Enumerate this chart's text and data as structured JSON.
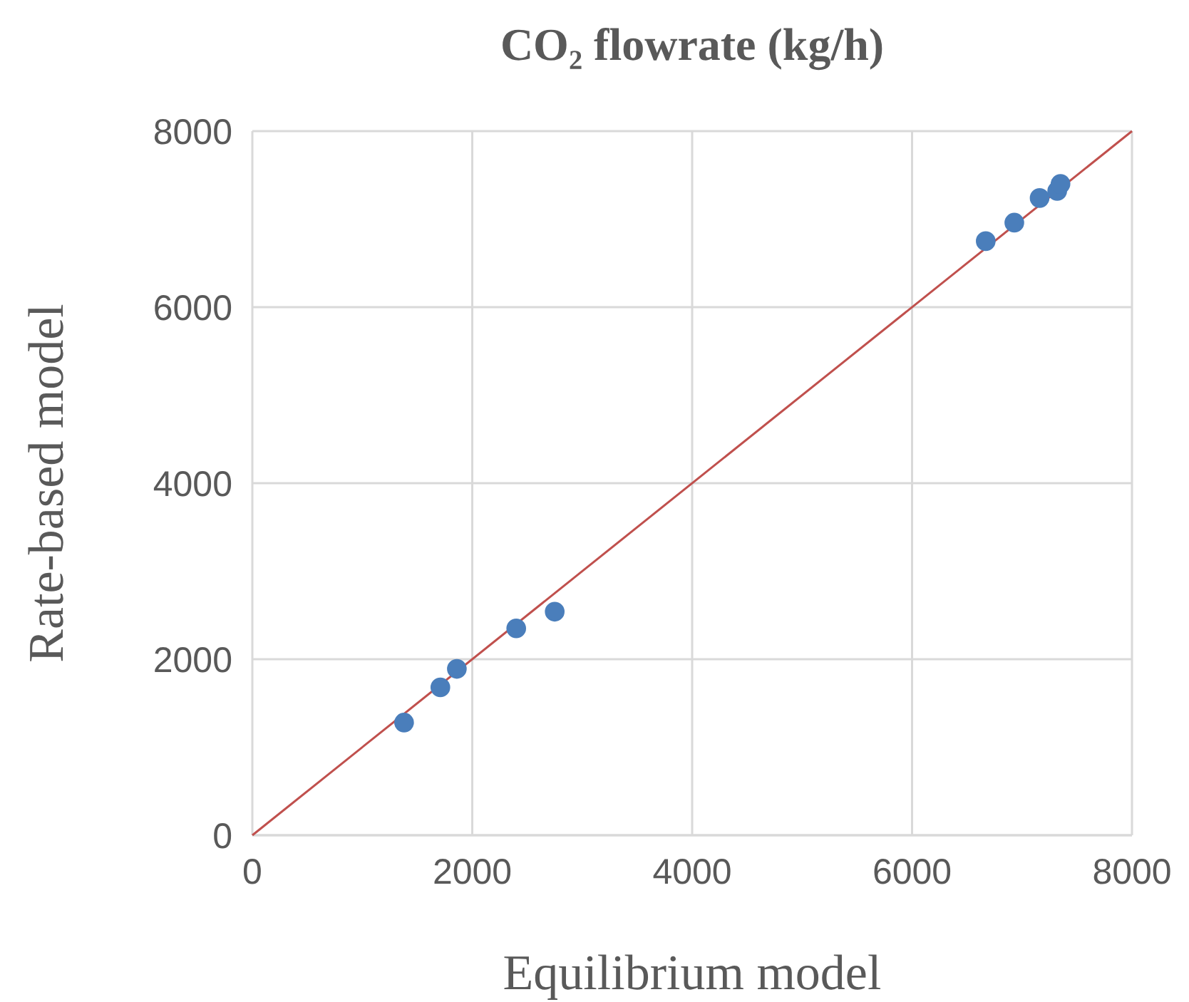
{
  "chart_data": {
    "type": "scatter",
    "title": "CO₂ flowrate (kg/h)",
    "xlabel": "Equilibrium model",
    "ylabel": "Rate-based model",
    "series": [
      {
        "color": "#4a7ebb",
        "marker": "circle",
        "x": [
          1380,
          1710,
          1860,
          2400,
          2750,
          6670,
          6930,
          7160,
          7320,
          7350
        ],
        "values": [
          1280,
          1680,
          1890,
          2350,
          2540,
          6750,
          6960,
          7240,
          7320,
          7400
        ]
      },
      {
        "type": "line",
        "color": "#c0504d",
        "marker": "none",
        "x": [
          0,
          8000
        ],
        "values": [
          0,
          8000
        ]
      }
    ],
    "xlim": [
      0,
      8000
    ],
    "ylim": [
      0,
      8000
    ],
    "xticks": [
      0,
      2000,
      4000,
      6000,
      8000
    ],
    "yticks": [
      0,
      2000,
      4000,
      6000,
      8000
    ],
    "grid": true
  }
}
